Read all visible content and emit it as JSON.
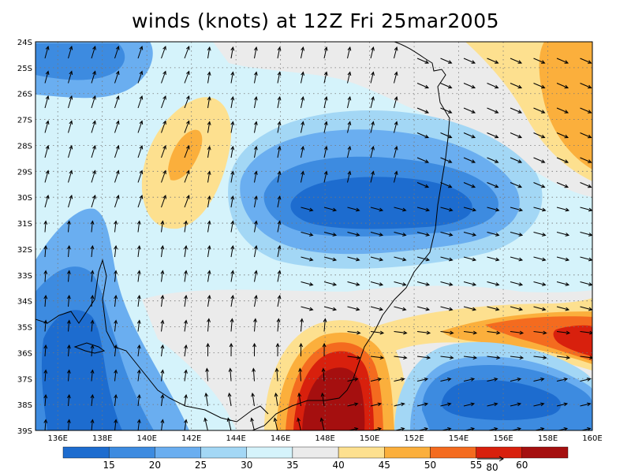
{
  "title": "winds (knots) at 12Z Fri 25mar2005",
  "lat_labels": [
    "24S",
    "25S",
    "26S",
    "27S",
    "28S",
    "29S",
    "30S",
    "31S",
    "32S",
    "33S",
    "34S",
    "35S",
    "36S",
    "37S",
    "38S",
    "39S"
  ],
  "lon_labels": [
    "136E",
    "138E",
    "140E",
    "142E",
    "144E",
    "146E",
    "148E",
    "150E",
    "152E",
    "154E",
    "156E",
    "158E",
    "160E"
  ],
  "colorbar": {
    "levels": [
      "15",
      "20",
      "25",
      "30",
      "35",
      "40",
      "45",
      "50",
      "55",
      "60"
    ],
    "colors": [
      "#1d6ccf",
      "#3d8be0",
      "#6aaef0",
      "#a3d7f5",
      "#d5f3fb",
      "#ebebeb",
      "#fde08f",
      "#fbaf3c",
      "#f46b1f",
      "#d8200d",
      "#a50f0f"
    ]
  },
  "reference_vector": {
    "value": "80"
  },
  "map": {
    "lon_range": [
      135,
      160
    ],
    "lat_range": [
      -39,
      -24
    ],
    "regions": [
      {
        "name": "sw-jet-low-speed",
        "speed_class": 1
      },
      {
        "name": "tasman-high-speed-core",
        "speed_class": 10
      },
      {
        "name": "east-jet-core",
        "speed_class": 9
      },
      {
        "name": "central-weak-cell",
        "speed_class": 1
      },
      {
        "name": "ne-strong-winds",
        "speed_class": 7
      },
      {
        "name": "inland-moderate-cell",
        "speed_class": 7
      }
    ]
  }
}
